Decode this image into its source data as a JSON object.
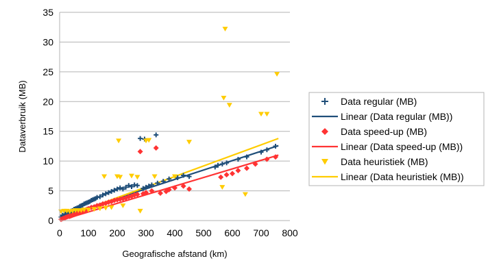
{
  "chart_data": {
    "type": "scatter",
    "title": "",
    "xlabel": "Geografische afstand (km)",
    "ylabel": "Dataverbruik (MB)",
    "xlim": [
      0,
      800
    ],
    "ylim": [
      0,
      35
    ],
    "x_ticks": [
      0,
      100,
      200,
      300,
      400,
      500,
      600,
      700,
      800
    ],
    "y_ticks": [
      0,
      5,
      10,
      15,
      20,
      25,
      30,
      35
    ],
    "grid": "horizontal",
    "legend_position": "right",
    "series": [
      {
        "name": "Data regular (MB)",
        "kind": "points",
        "marker": "plus",
        "color": "#1f4e79",
        "points": [
          [
            5,
            0.6
          ],
          [
            10,
            0.9
          ],
          [
            15,
            0.8
          ],
          [
            20,
            1.1
          ],
          [
            25,
            1.2
          ],
          [
            30,
            1.4
          ],
          [
            35,
            1.3
          ],
          [
            40,
            1.6
          ],
          [
            45,
            1.7
          ],
          [
            50,
            1.9
          ],
          [
            55,
            2.0
          ],
          [
            60,
            2.1
          ],
          [
            65,
            2.2
          ],
          [
            70,
            2.4
          ],
          [
            75,
            2.5
          ],
          [
            80,
            2.6
          ],
          [
            85,
            2.8
          ],
          [
            90,
            2.9
          ],
          [
            95,
            3.0
          ],
          [
            100,
            3.1
          ],
          [
            105,
            3.2
          ],
          [
            110,
            3.4
          ],
          [
            115,
            3.5
          ],
          [
            120,
            3.6
          ],
          [
            125,
            3.7
          ],
          [
            130,
            3.9
          ],
          [
            140,
            4.0
          ],
          [
            150,
            4.3
          ],
          [
            160,
            4.5
          ],
          [
            170,
            4.7
          ],
          [
            180,
            4.9
          ],
          [
            190,
            5.1
          ],
          [
            200,
            5.3
          ],
          [
            210,
            5.5
          ],
          [
            220,
            5.3
          ],
          [
            230,
            5.6
          ],
          [
            240,
            5.9
          ],
          [
            250,
            5.7
          ],
          [
            260,
            6.0
          ],
          [
            270,
            5.9
          ],
          [
            280,
            13.8
          ],
          [
            290,
            5.4
          ],
          [
            295,
            13.7
          ],
          [
            300,
            5.6
          ],
          [
            310,
            5.8
          ],
          [
            320,
            6.0
          ],
          [
            335,
            14.4
          ],
          [
            340,
            6.3
          ],
          [
            360,
            6.6
          ],
          [
            380,
            7.0
          ],
          [
            410,
            7.2
          ],
          [
            430,
            7.6
          ],
          [
            450,
            7.4
          ],
          [
            540,
            9.0
          ],
          [
            550,
            9.3
          ],
          [
            565,
            9.5
          ],
          [
            580,
            9.7
          ],
          [
            620,
            10.3
          ],
          [
            650,
            10.7
          ],
          [
            700,
            11.5
          ],
          [
            720,
            11.9
          ],
          [
            750,
            12.5
          ]
        ]
      },
      {
        "name": "Linear (Data regular (MB))",
        "kind": "line",
        "color": "#1f4e79",
        "x": [
          0,
          760
        ],
        "y": [
          0.6,
          12.6
        ]
      },
      {
        "name": "Data speed-up (MB)",
        "kind": "points",
        "marker": "diamond",
        "color": "#ff3333",
        "points": [
          [
            5,
            0.2
          ],
          [
            10,
            0.3
          ],
          [
            15,
            0.4
          ],
          [
            20,
            0.5
          ],
          [
            25,
            0.6
          ],
          [
            30,
            0.7
          ],
          [
            35,
            0.7
          ],
          [
            40,
            0.8
          ],
          [
            45,
            0.9
          ],
          [
            50,
            1.0
          ],
          [
            55,
            1.1
          ],
          [
            60,
            1.2
          ],
          [
            65,
            1.3
          ],
          [
            70,
            1.4
          ],
          [
            75,
            1.5
          ],
          [
            80,
            1.6
          ],
          [
            85,
            1.7
          ],
          [
            90,
            1.8
          ],
          [
            95,
            1.9
          ],
          [
            100,
            2.0
          ],
          [
            110,
            2.2
          ],
          [
            120,
            2.3
          ],
          [
            130,
            2.5
          ],
          [
            140,
            2.6
          ],
          [
            150,
            2.8
          ],
          [
            160,
            2.9
          ],
          [
            170,
            3.1
          ],
          [
            180,
            3.2
          ],
          [
            190,
            3.4
          ],
          [
            200,
            3.5
          ],
          [
            210,
            3.6
          ],
          [
            220,
            3.7
          ],
          [
            230,
            3.8
          ],
          [
            240,
            4.0
          ],
          [
            250,
            4.1
          ],
          [
            260,
            4.3
          ],
          [
            270,
            4.4
          ],
          [
            280,
            11.6
          ],
          [
            290,
            4.5
          ],
          [
            300,
            4.7
          ],
          [
            320,
            5.0
          ],
          [
            335,
            12.2
          ],
          [
            350,
            4.6
          ],
          [
            370,
            4.9
          ],
          [
            380,
            5.2
          ],
          [
            400,
            5.5
          ],
          [
            430,
            5.8
          ],
          [
            450,
            5.3
          ],
          [
            560,
            7.3
          ],
          [
            580,
            7.7
          ],
          [
            600,
            7.9
          ],
          [
            620,
            8.4
          ],
          [
            650,
            8.8
          ],
          [
            680,
            9.5
          ],
          [
            720,
            10.3
          ],
          [
            750,
            10.7
          ]
        ]
      },
      {
        "name": "Linear (Data speed-up (MB))",
        "kind": "line",
        "color": "#ff3333",
        "x": [
          0,
          760
        ],
        "y": [
          0.0,
          11.0
        ]
      },
      {
        "name": "Data heuristiek (MB)",
        "kind": "points",
        "marker": "triangle-down",
        "color": "#ffcc00",
        "points": [
          [
            5,
            1.5
          ],
          [
            15,
            1.6
          ],
          [
            25,
            1.6
          ],
          [
            35,
            1.5
          ],
          [
            45,
            1.6
          ],
          [
            55,
            1.7
          ],
          [
            65,
            1.7
          ],
          [
            75,
            1.7
          ],
          [
            85,
            1.8
          ],
          [
            100,
            1.8
          ],
          [
            120,
            1.9
          ],
          [
            140,
            2.0
          ],
          [
            155,
            7.4
          ],
          [
            160,
            2.1
          ],
          [
            180,
            2.2
          ],
          [
            200,
            7.4
          ],
          [
            205,
            13.4
          ],
          [
            210,
            7.3
          ],
          [
            220,
            2.5
          ],
          [
            250,
            7.5
          ],
          [
            270,
            7.3
          ],
          [
            280,
            1.6
          ],
          [
            300,
            13.4
          ],
          [
            310,
            13.5
          ],
          [
            330,
            7.4
          ],
          [
            400,
            7.4
          ],
          [
            450,
            13.2
          ],
          [
            565,
            5.6
          ],
          [
            570,
            20.6
          ],
          [
            575,
            32.2
          ],
          [
            590,
            19.4
          ],
          [
            645,
            4.4
          ],
          [
            700,
            17.9
          ],
          [
            720,
            17.9
          ],
          [
            755,
            24.6
          ]
        ]
      },
      {
        "name": "Linear (Data heuristiek (MB))",
        "kind": "line",
        "color": "#ffcc00",
        "x": [
          0,
          760
        ],
        "y": [
          0.3,
          13.8
        ]
      }
    ]
  }
}
